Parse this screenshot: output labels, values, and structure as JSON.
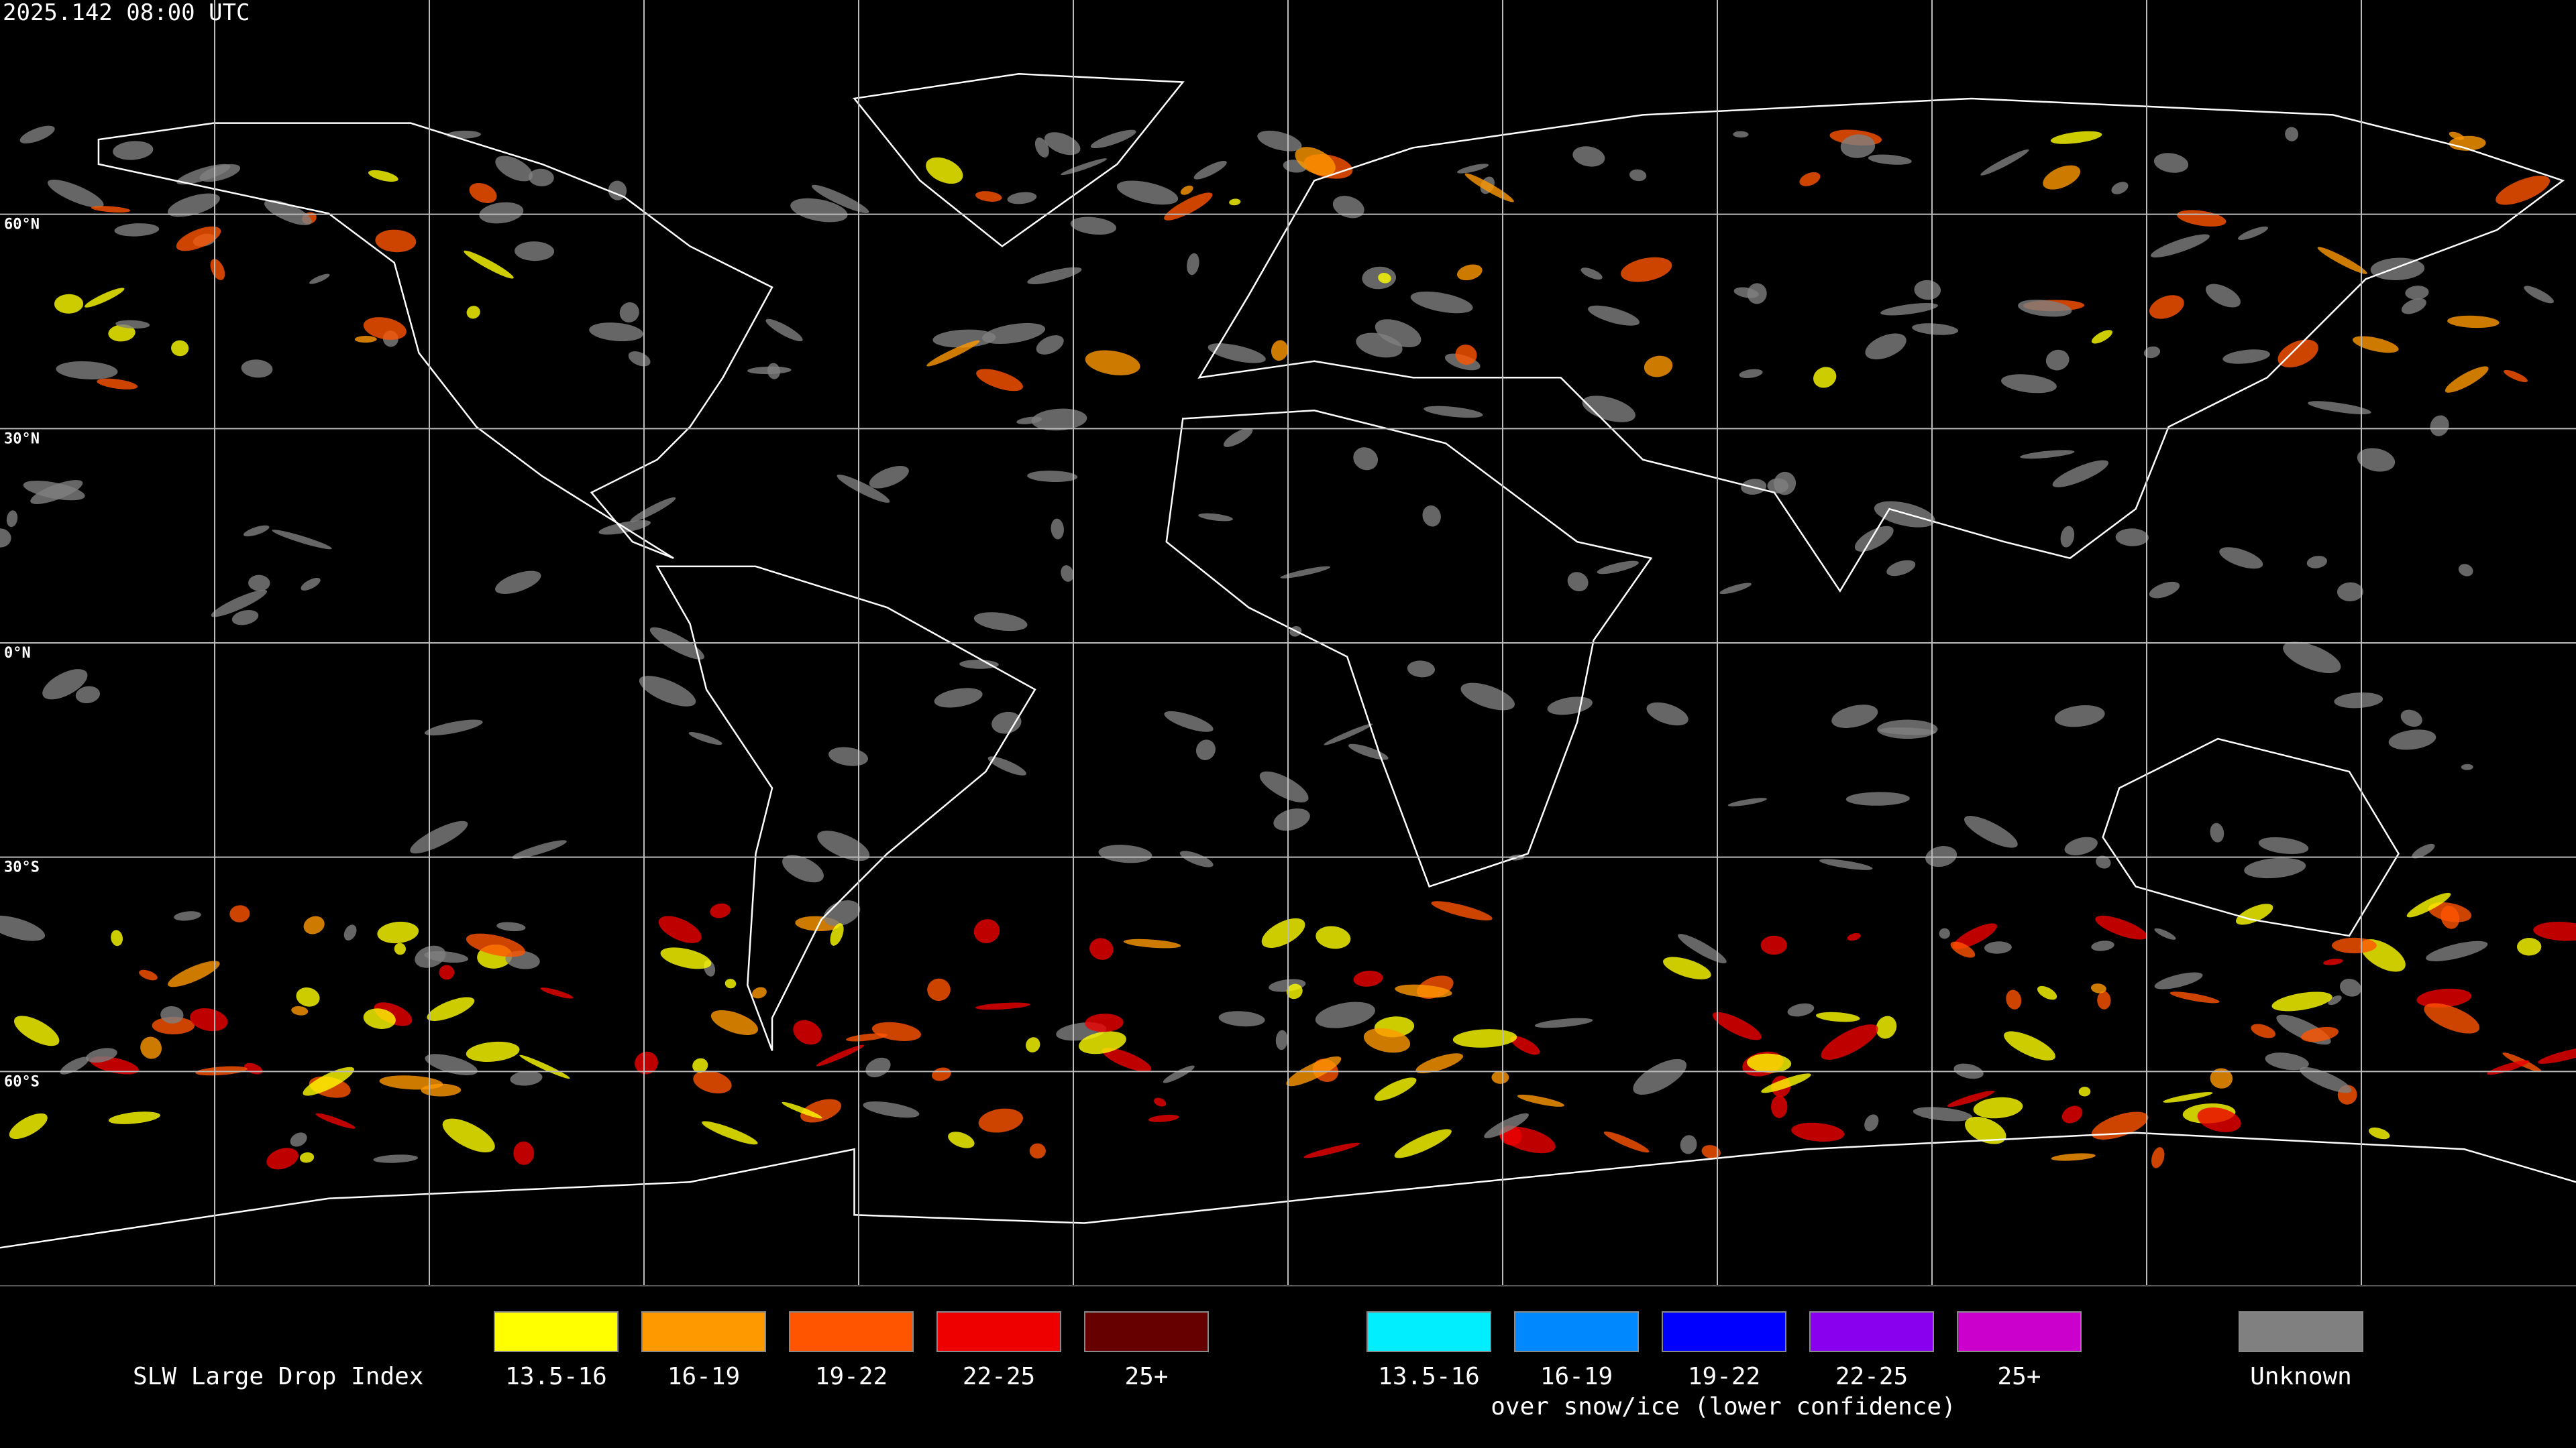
{
  "timestamp": "2025.142 08:00 UTC",
  "lat_labels": [
    "60°N",
    "30°N",
    "0°N",
    "30°S",
    "60°S"
  ],
  "legend": {
    "title": "SLW Large Drop Index",
    "categories": [
      {
        "label": "13.5-16",
        "color": "#ffff00"
      },
      {
        "label": "16-19",
        "color": "#ff9900"
      },
      {
        "label": "19-22",
        "color": "#ff5500"
      },
      {
        "label": "22-25",
        "color": "#ee0000"
      },
      {
        "label": "25+",
        "color": "#660000"
      }
    ],
    "snow_ice_categories": [
      {
        "label": "13.5-16",
        "color": "#00eeff"
      },
      {
        "label": "16-19",
        "color": "#0088ff"
      },
      {
        "label": "19-22",
        "color": "#0000ff"
      },
      {
        "label": "22-25",
        "color": "#8800ee"
      },
      {
        "label": "25+",
        "color": "#cc00cc"
      }
    ],
    "snow_ice_note": "over snow/ice (lower confidence)",
    "unknown": {
      "label": "Unknown",
      "color": "#808080"
    }
  }
}
